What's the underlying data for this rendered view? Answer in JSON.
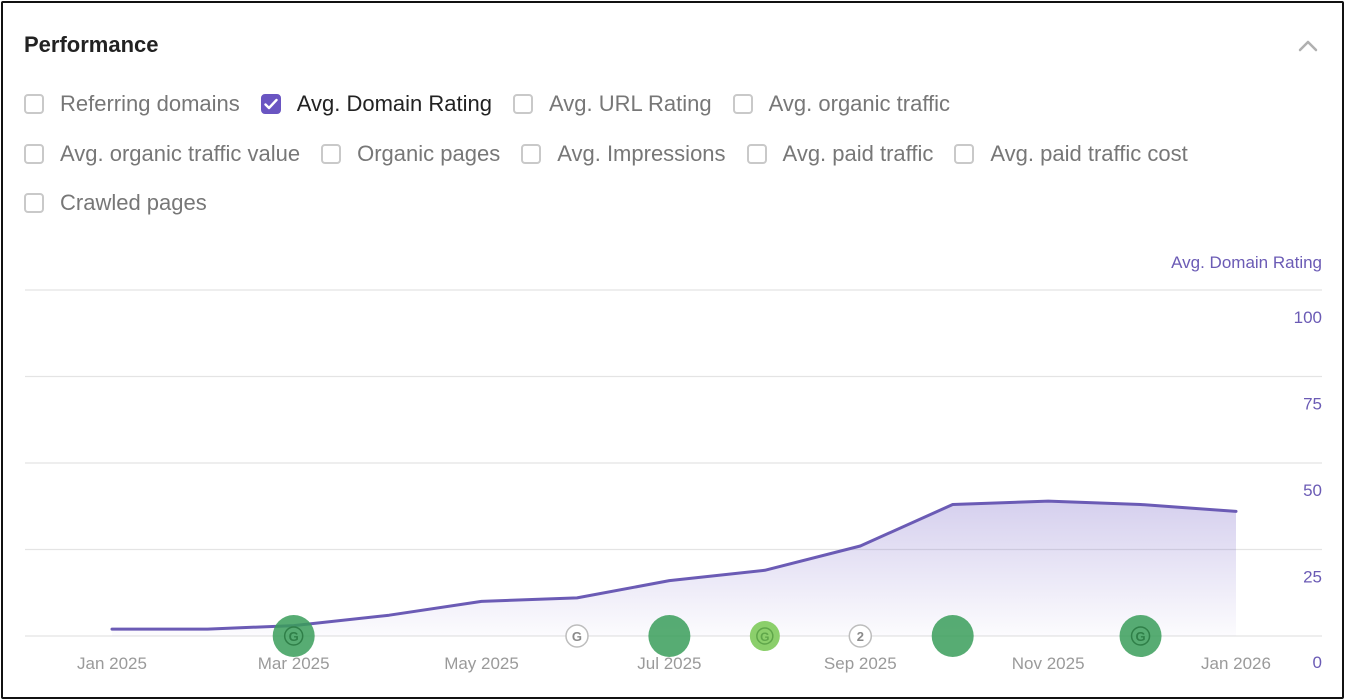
{
  "panel": {
    "title": "Performance"
  },
  "metrics": [
    {
      "label": "Referring domains",
      "checked": false
    },
    {
      "label": "Avg. Domain Rating",
      "checked": true
    },
    {
      "label": "Avg. URL Rating",
      "checked": false
    },
    {
      "label": "Avg. organic traffic",
      "checked": false
    },
    {
      "label": "Avg. organic traffic value",
      "checked": false
    },
    {
      "label": "Organic pages",
      "checked": false
    },
    {
      "label": "Avg. Impressions",
      "checked": false
    },
    {
      "label": "Avg. paid traffic",
      "checked": false
    },
    {
      "label": "Avg. paid traffic cost",
      "checked": false
    },
    {
      "label": "Crawled pages",
      "checked": false
    }
  ],
  "icons": {
    "collapse": "chevron-up-icon",
    "checkbox_checked": "checkmark-icon"
  },
  "colors": {
    "accent": "#6a55c2",
    "line": "#6b5bb5",
    "google_marker": "#3a9e5a",
    "google_marker_light": "#8bcf6b"
  },
  "chart_data": {
    "type": "area",
    "ylabel": "Avg. Domain Rating",
    "ylim": [
      0,
      100
    ],
    "yticks": [
      0,
      25,
      50,
      75,
      100
    ],
    "x_tick_labels": [
      "Jan 2025",
      "Mar 2025",
      "May 2025",
      "Jul 2025",
      "Sep 2025",
      "Nov 2025",
      "Jan 2026"
    ],
    "series": [
      {
        "x": [
          "2025-01-01",
          "2025-02-01",
          "2025-03-01",
          "2025-04-01",
          "2025-05-01",
          "2025-06-01",
          "2025-07-01",
          "2025-08-01",
          "2025-09-01",
          "2025-10-01",
          "2025-11-01",
          "2025-12-01",
          "2026-01-01"
        ],
        "values": [
          2,
          2,
          3,
          6,
          10,
          11,
          16,
          19,
          26,
          38,
          39,
          38,
          36
        ]
      }
    ],
    "markers": [
      {
        "type": "google-update",
        "date": "2025-03-01",
        "style": "large",
        "letter": "G"
      },
      {
        "type": "google-update",
        "date": "2025-06-01",
        "style": "outline",
        "letter": "G"
      },
      {
        "type": "google-update",
        "date": "2025-07-01",
        "style": "large",
        "letter": ""
      },
      {
        "type": "google-update",
        "date": "2025-08-01",
        "style": "small-light",
        "letter": "G"
      },
      {
        "type": "google-update",
        "date": "2025-09-01",
        "style": "outline",
        "letter": "2"
      },
      {
        "type": "google-update",
        "date": "2025-10-01",
        "style": "large",
        "letter": ""
      },
      {
        "type": "google-update",
        "date": "2025-12-01",
        "style": "large",
        "letter": "G"
      }
    ]
  }
}
